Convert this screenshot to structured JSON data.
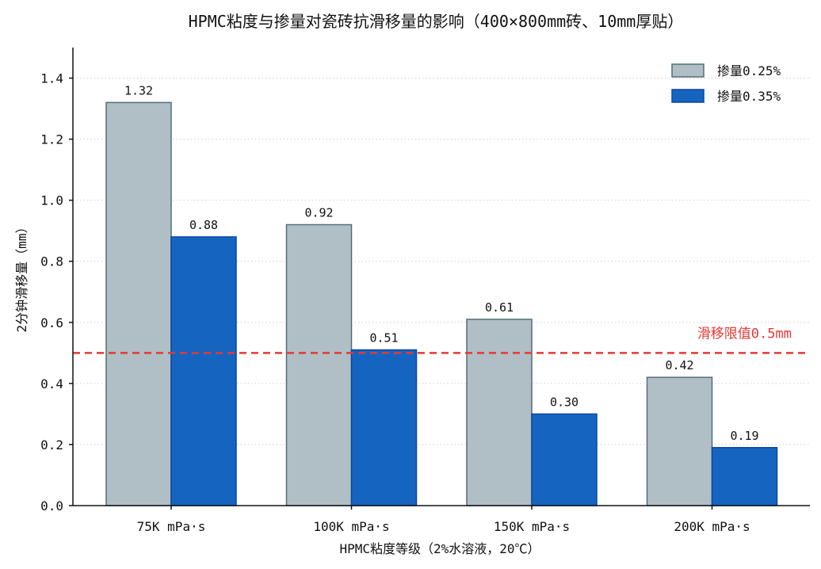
{
  "chart_data": {
    "type": "bar",
    "title": "HPMC粘度与掺量对瓷砖抗滑移量的影响（400×800mm砖、10mm厚贴）",
    "xlabel": "HPMC粘度等级（2%水溶液，20℃）",
    "ylabel": "2分钟滑移量（mm）",
    "categories": [
      "75K mPa·s",
      "100K mPa·s",
      "150K mPa·s",
      "200K mPa·s"
    ],
    "series": [
      {
        "name": "掺量0.25%",
        "values": [
          1.32,
          0.92,
          0.61,
          0.42
        ],
        "value_labels": [
          "1.32",
          "0.92",
          "0.61",
          "0.42"
        ],
        "fill": "#b0bec5",
        "stroke": "#546e7a"
      },
      {
        "name": "掺量0.35%",
        "values": [
          0.88,
          0.51,
          0.3,
          0.19
        ],
        "value_labels": [
          "0.88",
          "0.51",
          "0.30",
          "0.19"
        ],
        "fill": "#1565c0",
        "stroke": "#0d47a1"
      }
    ],
    "ylim": [
      0,
      1.5
    ],
    "yticks": [
      0.0,
      0.2,
      0.4,
      0.6,
      0.8,
      1.0,
      1.2,
      1.4
    ],
    "ytick_labels": [
      "0.0",
      "0.2",
      "0.4",
      "0.6",
      "0.8",
      "1.0",
      "1.2",
      "1.4"
    ],
    "threshold": {
      "value": 0.5,
      "label": "滑移限值0.5mm",
      "color": "#e53935"
    },
    "grid": "horizontal-dotted",
    "legend_position": "top-right"
  }
}
